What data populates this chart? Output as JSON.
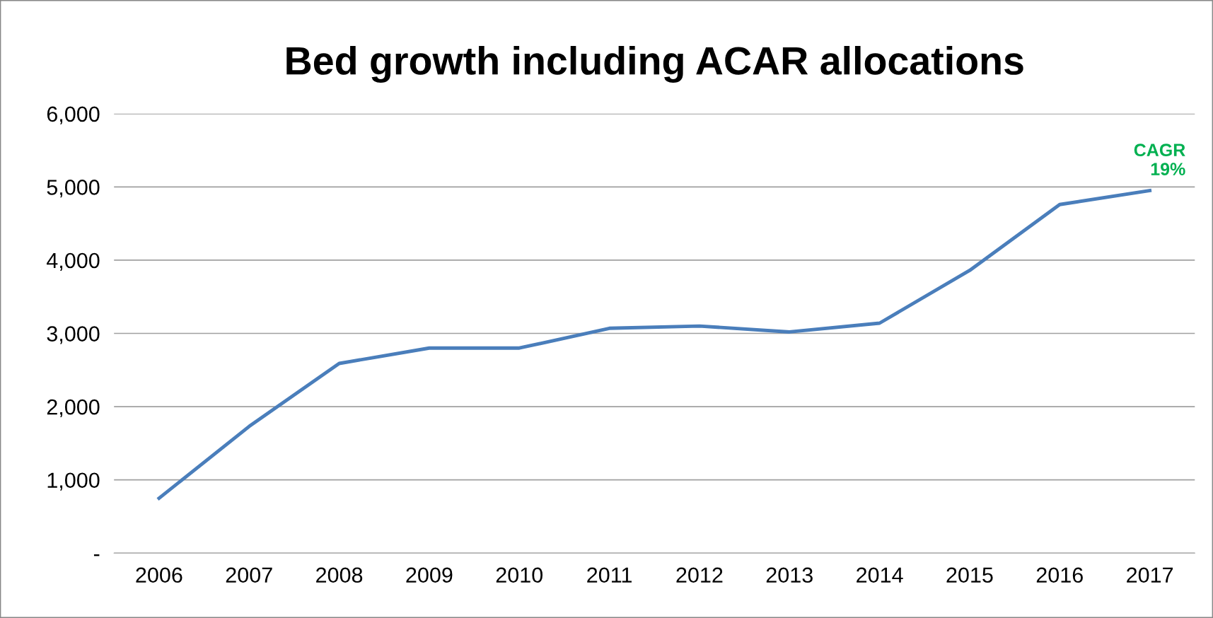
{
  "chart_data": {
    "type": "line",
    "title": "Bed growth including ACAR allocations",
    "categories": [
      "2006",
      "2007",
      "2008",
      "2009",
      "2010",
      "2011",
      "2012",
      "2013",
      "2014",
      "2015",
      "2016",
      "2017"
    ],
    "series": [
      {
        "color": "#4a7ebb",
        "values": [
          750,
          1730,
          2590,
          2800,
          2800,
          3070,
          3100,
          3020,
          3140,
          3860,
          4760,
          4950
        ]
      }
    ],
    "ylim": [
      0,
      6000
    ],
    "yticks": [
      {
        "value": 0,
        "label": "-"
      },
      {
        "value": 1000,
        "label": "1,000"
      },
      {
        "value": 2000,
        "label": "2,000"
      },
      {
        "value": 3000,
        "label": "3,000"
      },
      {
        "value": 4000,
        "label": "4,000"
      },
      {
        "value": 5000,
        "label": "5,000"
      },
      {
        "value": 6000,
        "label": "6,000"
      }
    ],
    "grid": "y",
    "legend": false,
    "marker": "none",
    "line_style": "solid",
    "annotations": [
      {
        "text": "CAGR\n19%",
        "x": "2017",
        "y": 4950
      }
    ]
  }
}
